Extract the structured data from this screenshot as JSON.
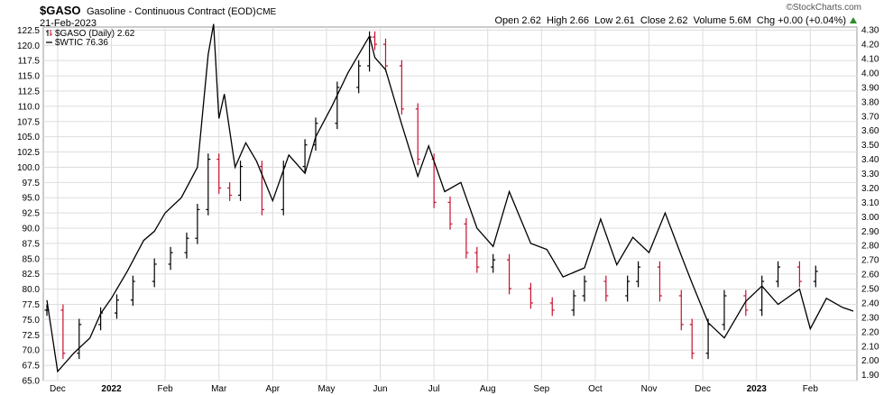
{
  "header": {
    "symbol": "$GASO",
    "description": "Gasoline - Continuous Contract (EOD)",
    "exchange": "CME",
    "date": "21-Feb-2023",
    "watermark": "©StockCharts.com",
    "ohlc": "Open 2.62  High 2.66  Low 2.61  Close 2.62  Volume 5.6M  Chg +0.00 (+0.04%)",
    "chg_arrow_color": "#2e8b2e"
  },
  "legend": [
    {
      "label": "$GASO (Daily) 2.62",
      "color": "#000000"
    },
    {
      "label": "$WTIC 76.36",
      "color": "#000000"
    }
  ],
  "colors": {
    "up": "#000000",
    "down": "#c8102e",
    "line": "#000000",
    "grid": "#dddddd"
  },
  "chart_data": {
    "type": "line",
    "x_ticks": [
      "Dec",
      "2022",
      "Feb",
      "Mar",
      "Apr",
      "May",
      "Jun",
      "Jul",
      "Aug",
      "Sep",
      "Oct",
      "Nov",
      "Dec",
      "2023",
      "Feb"
    ],
    "left_axis": {
      "ylim": [
        65.0,
        123.0
      ],
      "ticks": [
        65.0,
        67.5,
        70.0,
        72.5,
        75.0,
        77.5,
        80.0,
        82.5,
        85.0,
        87.5,
        90.0,
        92.5,
        95.0,
        97.5,
        100.0,
        102.5,
        105.0,
        107.5,
        110.0,
        112.5,
        115.0,
        117.5,
        120.0,
        122.5
      ]
    },
    "right_axis": {
      "ylim": [
        1.86,
        4.32
      ],
      "ticks": [
        1.9,
        2.0,
        2.1,
        2.2,
        2.3,
        2.4,
        2.5,
        2.6,
        2.7,
        2.8,
        2.9,
        3.0,
        3.1,
        3.2,
        3.3,
        3.4,
        3.5,
        3.6,
        3.7,
        3.8,
        3.9,
        4.0,
        4.1,
        4.2,
        4.3
      ]
    },
    "series": [
      {
        "name": "$GASO (Daily) 2.62",
        "style": "ohlc",
        "axis": "right",
        "x_month": [
          0,
          0.3,
          0.6,
          1,
          1.3,
          1.6,
          2,
          2.3,
          2.6,
          2.8,
          3,
          3.2,
          3.4,
          3.6,
          4,
          4.4,
          4.8,
          5,
          5.4,
          5.8,
          6,
          6.1,
          6.3,
          6.6,
          6.9,
          7.2,
          7.5,
          7.8,
          8,
          8.3,
          8.6,
          9,
          9.4,
          9.8,
          10,
          10.4,
          10.8,
          11,
          11.4,
          11.8,
          12,
          12.3,
          12.6,
          13,
          13.3,
          13.6,
          14,
          14.3
        ],
        "close": [
          2.35,
          2.05,
          2.25,
          2.33,
          2.42,
          2.55,
          2.67,
          2.75,
          2.85,
          3.05,
          3.4,
          3.2,
          3.15,
          3.35,
          3.05,
          3.35,
          3.5,
          3.65,
          3.9,
          4.05,
          4.25,
          4.2,
          4.05,
          3.75,
          3.4,
          3.1,
          2.95,
          2.75,
          2.65,
          2.7,
          2.5,
          2.4,
          2.35,
          2.45,
          2.55,
          2.45,
          2.55,
          2.65,
          2.45,
          2.25,
          2.05,
          2.25,
          2.45,
          2.35,
          2.55,
          2.65,
          2.55,
          2.62
        ]
      },
      {
        "name": "$WTIC 76.36",
        "style": "line",
        "axis": "left",
        "x_month": [
          0,
          0.2,
          0.5,
          0.8,
          1,
          1.2,
          1.5,
          1.8,
          2,
          2.2,
          2.5,
          2.8,
          3,
          3.1,
          3.2,
          3.3,
          3.5,
          3.7,
          3.9,
          4.2,
          4.5,
          4.8,
          5,
          5.3,
          5.6,
          6,
          6.1,
          6.3,
          6.6,
          6.9,
          7.1,
          7.4,
          7.7,
          8,
          8.3,
          8.6,
          9,
          9.3,
          9.6,
          10,
          10.3,
          10.6,
          10.9,
          11.2,
          11.5,
          11.8,
          12,
          12.3,
          12.6,
          12.9,
          13,
          13.3,
          13.6,
          14,
          14.2,
          14.5,
          14.8,
          15
        ],
        "close": [
          78.2,
          66.5,
          69.5,
          72.0,
          76.0,
          78.5,
          83.0,
          88.0,
          89.5,
          92.5,
          95.0,
          100.0,
          118.5,
          123.5,
          108.0,
          112.0,
          100.0,
          104.0,
          101.0,
          94.5,
          102.0,
          99.0,
          105.0,
          110.0,
          115.5,
          121.5,
          118.0,
          116.0,
          107.0,
          98.5,
          103.5,
          96.0,
          97.5,
          90.0,
          87.0,
          96.0,
          87.5,
          86.5,
          82.0,
          83.5,
          91.5,
          84.0,
          88.5,
          86.0,
          92.5,
          85.5,
          81.0,
          74.5,
          72.0,
          76.5,
          78.0,
          80.5,
          77.5,
          80.0,
          73.5,
          78.5,
          77.0,
          76.4
        ]
      }
    ]
  }
}
